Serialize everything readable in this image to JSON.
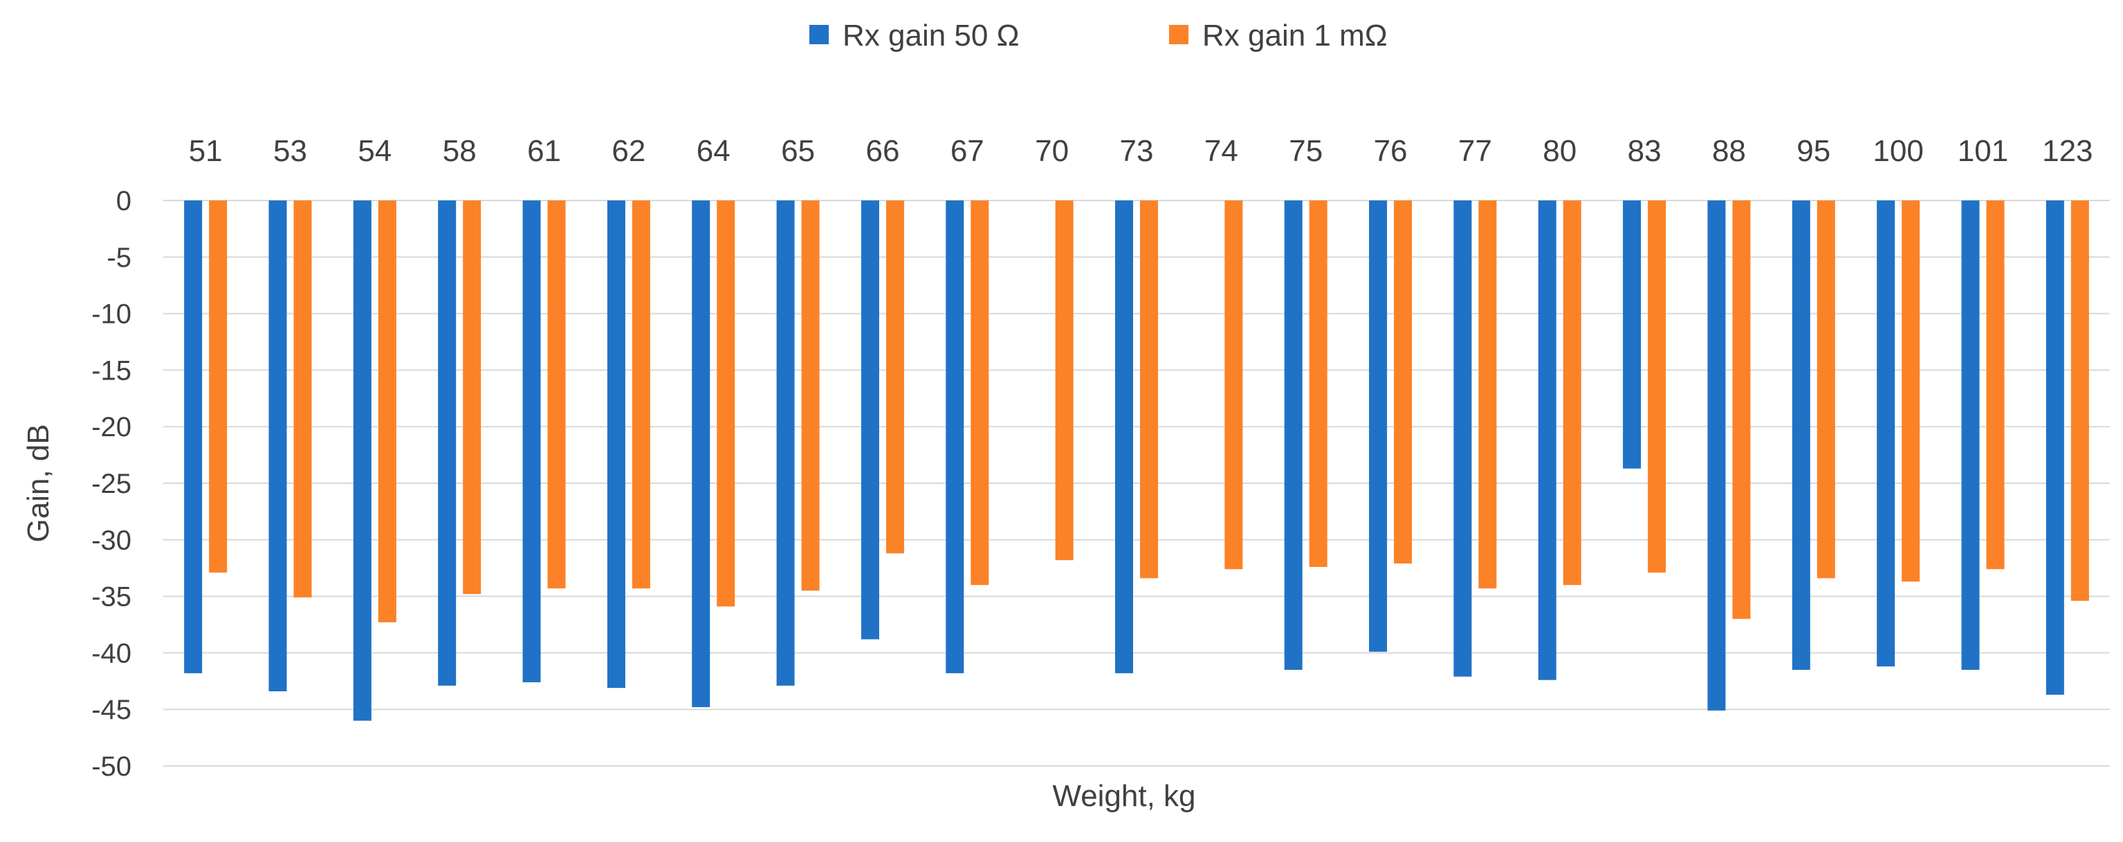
{
  "chart_data": {
    "type": "bar",
    "title": "",
    "xlabel": "Weight, kg",
    "ylabel": "Gain, dB",
    "ylim": [
      -50,
      0
    ],
    "yticks": [
      0,
      -5,
      -10,
      -15,
      -20,
      -25,
      -30,
      -35,
      -40,
      -45,
      -50
    ],
    "ytick_labels": [
      "0",
      "-5",
      "-10",
      "-15",
      "-20",
      "-25",
      "-30",
      "-35",
      "-40",
      "-45",
      "-50"
    ],
    "category_axis_position": "top",
    "legend_position": "top",
    "grid": true,
    "categories": [
      "51",
      "53",
      "54",
      "58",
      "61",
      "62",
      "64",
      "65",
      "66",
      "67",
      "70",
      "73",
      "74",
      "75",
      "76",
      "77",
      "80",
      "83",
      "88",
      "95",
      "100",
      "101",
      "123"
    ],
    "series": [
      {
        "name": "Rx gain 50 Ω",
        "color": "#1F72C6",
        "values": [
          -41.8,
          -43.4,
          -46.0,
          -42.9,
          -42.6,
          -43.1,
          -44.8,
          -42.9,
          -38.8,
          -41.8,
          null,
          -41.8,
          null,
          -41.5,
          -39.9,
          -42.1,
          -42.4,
          -23.7,
          -45.1,
          -41.5,
          -41.2,
          -41.5,
          -43.7
        ]
      },
      {
        "name": "Rx gain 1 mΩ",
        "color": "#FB8227",
        "values": [
          -32.9,
          -35.1,
          -37.3,
          -34.8,
          -34.3,
          -34.3,
          -35.9,
          -34.5,
          -31.2,
          -34.0,
          -31.8,
          -33.4,
          -32.6,
          -32.4,
          -32.1,
          -34.3,
          -34.0,
          -32.9,
          -37.0,
          -33.4,
          -33.7,
          -32.6,
          -35.4
        ]
      }
    ]
  }
}
